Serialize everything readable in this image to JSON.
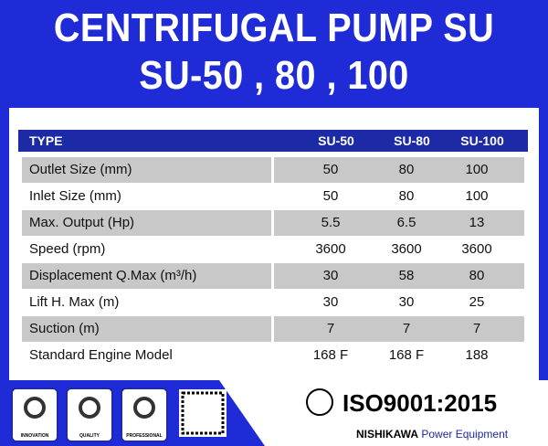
{
  "header": {
    "title": [
      "CENTRIFUGAL PUMP SU",
      "SU-50 , 80 , 100"
    ]
  },
  "table": {
    "columns": [
      "TYPE",
      "SU-50",
      "SU-80",
      "SU-100"
    ],
    "rows": [
      [
        "Outlet Size (mm)",
        "50",
        "80",
        "100"
      ],
      [
        "Inlet Size (mm)",
        "50",
        "80",
        "100"
      ],
      [
        "Max. Output (Hp)",
        "5.5",
        "6.5",
        "13"
      ],
      [
        "Speed (rpm)",
        "3600",
        "3600",
        "3600"
      ],
      [
        "Displacement Q.Max (m³/h)",
        "30",
        "58",
        "80"
      ],
      [
        "Lift H. Max (m)",
        "30",
        "30",
        "25"
      ],
      [
        "Suction (m)",
        "7",
        "7",
        "7"
      ],
      [
        "Standard Engine Model",
        "168 F",
        "168 F",
        "188"
      ]
    ]
  },
  "footer": {
    "badges": [
      "INNOVATION",
      "QUALITY",
      "PROFESSIONAL"
    ],
    "certification": "ISO9001:2015",
    "brand": "NISHIKAWA",
    "tagline": "Power Equipment"
  }
}
